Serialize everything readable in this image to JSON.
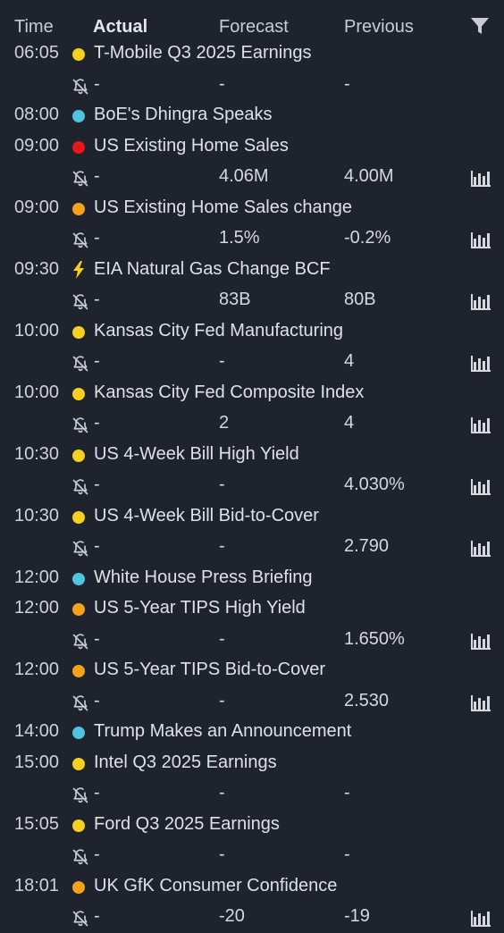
{
  "header": {
    "time": "Time",
    "actual": "Actual",
    "forecast": "Forecast",
    "previous": "Previous"
  },
  "rows": [
    {
      "type": "event",
      "time": "06:05",
      "impact": "yellow",
      "title": "T-Mobile Q3 2025 Earnings"
    },
    {
      "type": "values",
      "actual": "-",
      "forecast": "-",
      "previous": "-",
      "chart": false
    },
    {
      "type": "event",
      "time": "08:00",
      "impact": "cyan",
      "title": "BoE's Dhingra Speaks"
    },
    {
      "type": "event",
      "time": "09:00",
      "impact": "red",
      "title": "US Existing Home Sales"
    },
    {
      "type": "values",
      "actual": "-",
      "forecast": "4.06M",
      "previous": "4.00M",
      "chart": true
    },
    {
      "type": "event",
      "time": "09:00",
      "impact": "orange",
      "title": "US Existing Home Sales change"
    },
    {
      "type": "values",
      "actual": "-",
      "forecast": "1.5%",
      "previous": "-0.2%",
      "chart": true
    },
    {
      "type": "event",
      "time": "09:30",
      "impact": "bolt",
      "title": "EIA Natural Gas Change BCF"
    },
    {
      "type": "values",
      "actual": "-",
      "forecast": "83B",
      "previous": "80B",
      "chart": true
    },
    {
      "type": "event",
      "time": "10:00",
      "impact": "yellow",
      "title": "Kansas City Fed Manufacturing"
    },
    {
      "type": "values",
      "actual": "-",
      "forecast": "-",
      "previous": "4",
      "chart": true
    },
    {
      "type": "event",
      "time": "10:00",
      "impact": "yellow",
      "title": "Kansas City Fed Composite Index"
    },
    {
      "type": "values",
      "actual": "-",
      "forecast": "2",
      "previous": "4",
      "chart": true
    },
    {
      "type": "event",
      "time": "10:30",
      "impact": "yellow",
      "title": "US 4-Week Bill High Yield"
    },
    {
      "type": "values",
      "actual": "-",
      "forecast": "-",
      "previous": "4.030%",
      "chart": true
    },
    {
      "type": "event",
      "time": "10:30",
      "impact": "yellow",
      "title": "US 4-Week Bill Bid-to-Cover"
    },
    {
      "type": "values",
      "actual": "-",
      "forecast": "-",
      "previous": "2.790",
      "chart": true
    },
    {
      "type": "event",
      "time": "12:00",
      "impact": "cyan",
      "title": "White House Press Briefing"
    },
    {
      "type": "event",
      "time": "12:00",
      "impact": "orange",
      "title": "US 5-Year TIPS High Yield"
    },
    {
      "type": "values",
      "actual": "-",
      "forecast": "-",
      "previous": "1.650%",
      "chart": true
    },
    {
      "type": "event",
      "time": "12:00",
      "impact": "orange",
      "title": "US 5-Year TIPS Bid-to-Cover"
    },
    {
      "type": "values",
      "actual": "-",
      "forecast": "-",
      "previous": "2.530",
      "chart": true
    },
    {
      "type": "event",
      "time": "14:00",
      "impact": "cyan",
      "title": "Trump Makes an Announcement"
    },
    {
      "type": "event",
      "time": "15:00",
      "impact": "yellow",
      "title": "Intel Q3 2025 Earnings"
    },
    {
      "type": "values",
      "actual": "-",
      "forecast": "-",
      "previous": "-",
      "chart": false
    },
    {
      "type": "event",
      "time": "15:05",
      "impact": "yellow",
      "title": "Ford Q3 2025 Earnings"
    },
    {
      "type": "values",
      "actual": "-",
      "forecast": "-",
      "previous": "-",
      "chart": false
    },
    {
      "type": "event",
      "time": "18:01",
      "impact": "orange",
      "title": "UK GfK Consumer Confidence"
    },
    {
      "type": "values",
      "actual": "-",
      "forecast": "-20",
      "previous": "-19",
      "chart": true
    }
  ],
  "icons": {
    "filter": "filter-icon",
    "bell_off": "bell-off-icon",
    "chart": "bar-chart-icon",
    "bolt": "lightning-icon"
  },
  "colors": {
    "yellow": "#f5d020",
    "orange": "#f5a21b",
    "red": "#e5171b",
    "cyan": "#4fc3df",
    "bolt": "#f5d020",
    "background": "#1f232d"
  }
}
